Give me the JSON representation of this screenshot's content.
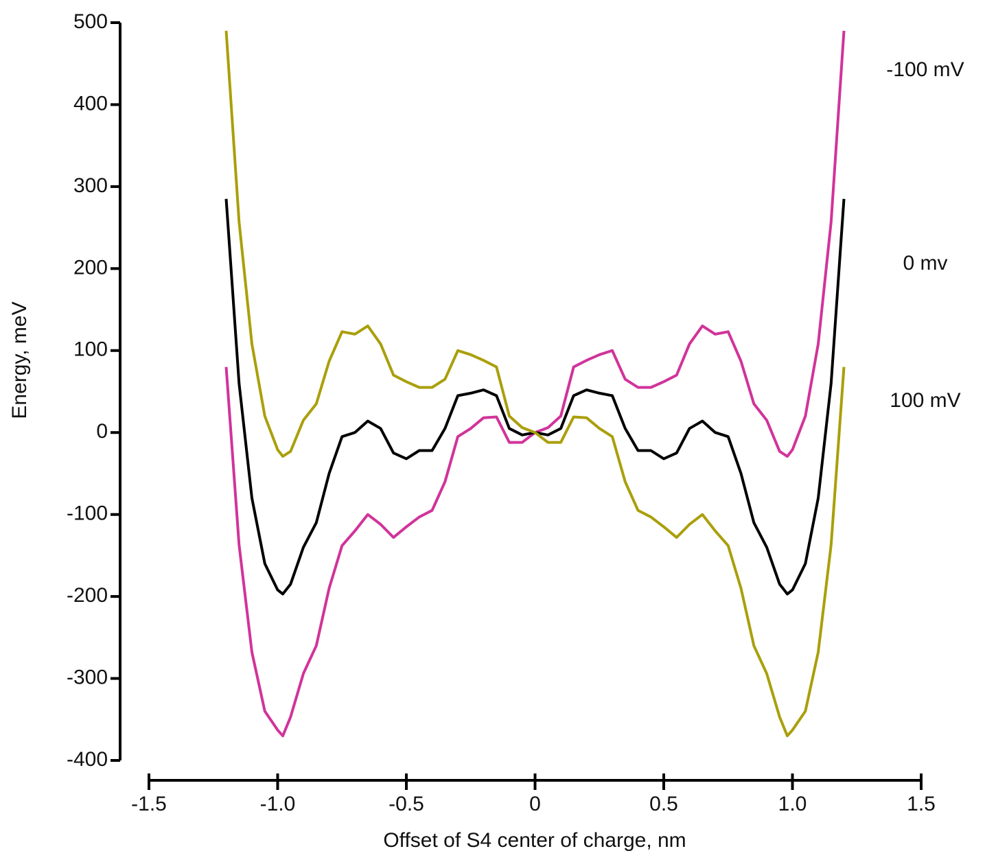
{
  "chart_data": {
    "type": "line",
    "xlabel": "Offset of S4 center of charge, nm",
    "ylabel": "Energy, meV",
    "x": [
      -1.2,
      -1.15,
      -1.1,
      -1.05,
      -1.0,
      -0.98,
      -0.95,
      -0.9,
      -0.85,
      -0.8,
      -0.75,
      -0.7,
      -0.65,
      -0.6,
      -0.55,
      -0.5,
      -0.45,
      -0.4,
      -0.35,
      -0.3,
      -0.25,
      -0.2,
      -0.15,
      -0.1,
      -0.05,
      0,
      0.05,
      0.1,
      0.15,
      0.2,
      0.25,
      0.3,
      0.35,
      0.4,
      0.45,
      0.5,
      0.55,
      0.6,
      0.65,
      0.7,
      0.75,
      0.8,
      0.85,
      0.9,
      0.95,
      0.98,
      1.0,
      1.05,
      1.1,
      1.15,
      1.2
    ],
    "series": [
      {
        "name": "-100 mV",
        "color": "#d1339a",
        "values": [
          80,
          -137,
          -268,
          -340,
          -363,
          -370,
          -347,
          -294,
          -260,
          -190,
          -138,
          -120,
          -100,
          -112,
          -128,
          -115,
          -103,
          -95,
          -60,
          -5,
          5,
          18,
          19,
          -12,
          -12,
          0,
          6,
          20,
          80,
          88,
          95,
          100,
          65,
          55,
          55,
          62,
          70,
          108,
          130,
          120,
          123,
          87,
          35,
          15,
          -23,
          -29,
          -21,
          20,
          108,
          257,
          490
        ]
      },
      {
        "name": "0 mv",
        "color": "#000000",
        "values": [
          285,
          60,
          -80,
          -160,
          -192,
          -197,
          -185,
          -140,
          -110,
          -50,
          -5,
          0,
          14,
          5,
          -25,
          -32,
          -22,
          -22,
          5,
          45,
          48,
          52,
          45,
          5,
          -3,
          0,
          -3,
          5,
          45,
          52,
          48,
          45,
          5,
          -22,
          -22,
          -32,
          -25,
          5,
          14,
          0,
          -5,
          -50,
          -110,
          -140,
          -185,
          -197,
          -192,
          -160,
          -80,
          60,
          285
        ]
      },
      {
        "name": "100 mV",
        "color": "#aa9f0b",
        "values": [
          490,
          257,
          108,
          20,
          -21,
          -29,
          -23,
          15,
          35,
          87,
          123,
          120,
          130,
          108,
          70,
          62,
          55,
          55,
          65,
          100,
          95,
          88,
          80,
          20,
          6,
          0,
          -12,
          -12,
          19,
          18,
          5,
          -5,
          -60,
          -95,
          -103,
          -115,
          -128,
          -112,
          -100,
          -120,
          -138,
          -190,
          -260,
          -294,
          -347,
          -370,
          -363,
          -340,
          -268,
          -137,
          80
        ]
      }
    ],
    "xlim": [
      -1.5,
      1.5
    ],
    "xticks": [
      -1.5,
      {
        "value": -1.0,
        "label": "-1.0"
      },
      -0.5,
      0,
      0.5,
      {
        "value": 1.0,
        "label": "1.0"
      },
      1.5
    ],
    "ylim": [
      -400,
      500
    ],
    "yticks": [
      -400,
      -300,
      -200,
      -100,
      0,
      100,
      200,
      300,
      400,
      500
    ],
    "grid": false
  }
}
